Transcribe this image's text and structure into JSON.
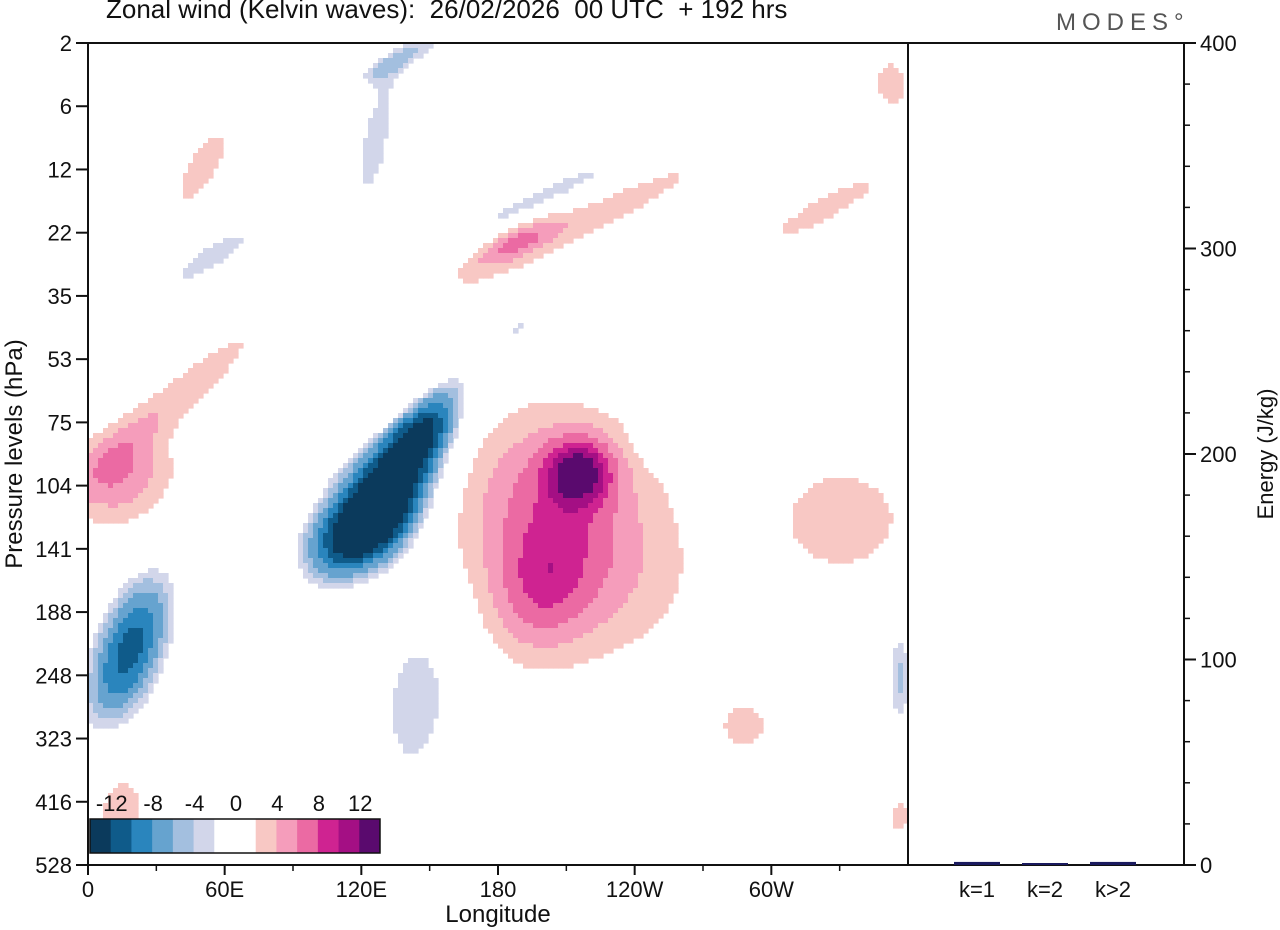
{
  "chart_data": [
    {
      "type": "heatmap",
      "title": "Zonal wind (Kelvin waves):  26/02/2026  00 UTC  + 192 hrs",
      "xlabel": "Longitude",
      "ylabel": "Pressure levels (hPa)",
      "x_ticks": [
        "0",
        "60E",
        "120E",
        "180",
        "120W",
        "60W"
      ],
      "y_ticks": [
        "2",
        "6",
        "12",
        "22",
        "35",
        "53",
        "75",
        "104",
        "141",
        "188",
        "248",
        "323",
        "416",
        "528"
      ],
      "colorbar": {
        "labels": [
          "-12",
          "-8",
          "-4",
          "0",
          "4",
          "8",
          "12"
        ],
        "colors": [
          "#0b3a5c",
          "#0f5b8a",
          "#2a85bd",
          "#66a3cf",
          "#a3bfdf",
          "#d2d6ea",
          "#ffffff",
          "#ffffff",
          "#f8c8c4",
          "#f59dbb",
          "#eb6aa3",
          "#cf2391",
          "#a40f84",
          "#5a0a6e"
        ]
      },
      "features": [
        {
          "name": "easterly core",
          "center_longitude": 110,
          "center_hPa": 120,
          "value": -14
        },
        {
          "name": "easterly western",
          "center_longitude": 12,
          "center_hPa": 210,
          "value": -11
        },
        {
          "name": "westerly pacific",
          "center_longitude": 195,
          "center_hPa": 120,
          "value": 9
        },
        {
          "name": "westerly western",
          "center_longitude": 8,
          "center_hPa": 110,
          "value": 8
        }
      ]
    },
    {
      "type": "bar",
      "categories": [
        "k=1",
        "k=2",
        "k>2"
      ],
      "values": [
        1.5,
        0.8,
        1.5
      ],
      "ylabel": "Energy (J/kg)",
      "ylim": [
        0,
        400
      ],
      "y_ticks": [
        "0",
        "100",
        "200",
        "300",
        "400"
      ],
      "bar_color": "#1a1a5e"
    }
  ],
  "brand": "MODES°"
}
